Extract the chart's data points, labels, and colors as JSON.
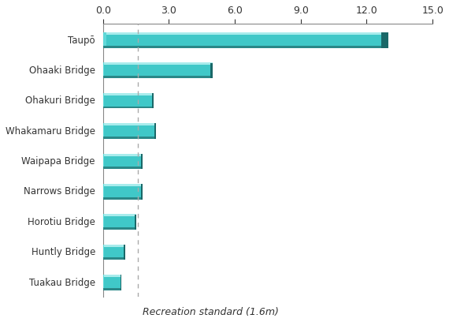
{
  "categories": [
    "Tuakau Bridge",
    "Huntly Bridge",
    "Horotiu Bridge",
    "Narrows Bridge",
    "Waipapa Bridge",
    "Whakamaru Bridge",
    "Ohakuri Bridge",
    "Ohaaki Bridge",
    "Taupō"
  ],
  "values": [
    0.85,
    1.0,
    1.5,
    1.8,
    1.8,
    2.4,
    2.3,
    5.0,
    13.0
  ],
  "bar_color_top": "#A8ECEC",
  "bar_color_main": "#40C8C8",
  "bar_color_bottom_shadow": "#2A8888",
  "bar_color_right_edge": "#1A6868",
  "bar_color_left_edge": "#60D8D8",
  "background_color": "#FFFFFF",
  "xlabel": "Recreation standard (1.6m)",
  "xlim": [
    0,
    15
  ],
  "xticks": [
    0.0,
    3.0,
    6.0,
    9.0,
    12.0,
    15.0
  ],
  "xticklabels": [
    "0.0",
    "3.0",
    "6.0",
    "9.0",
    "12.0",
    "15.0"
  ],
  "vline_x": 1.6,
  "vline_color": "#AAAAAA",
  "vline_style": "--",
  "tick_color": "#333333",
  "label_fontsize": 8.5,
  "xlabel_fontsize": 9,
  "xtick_fontsize": 9
}
